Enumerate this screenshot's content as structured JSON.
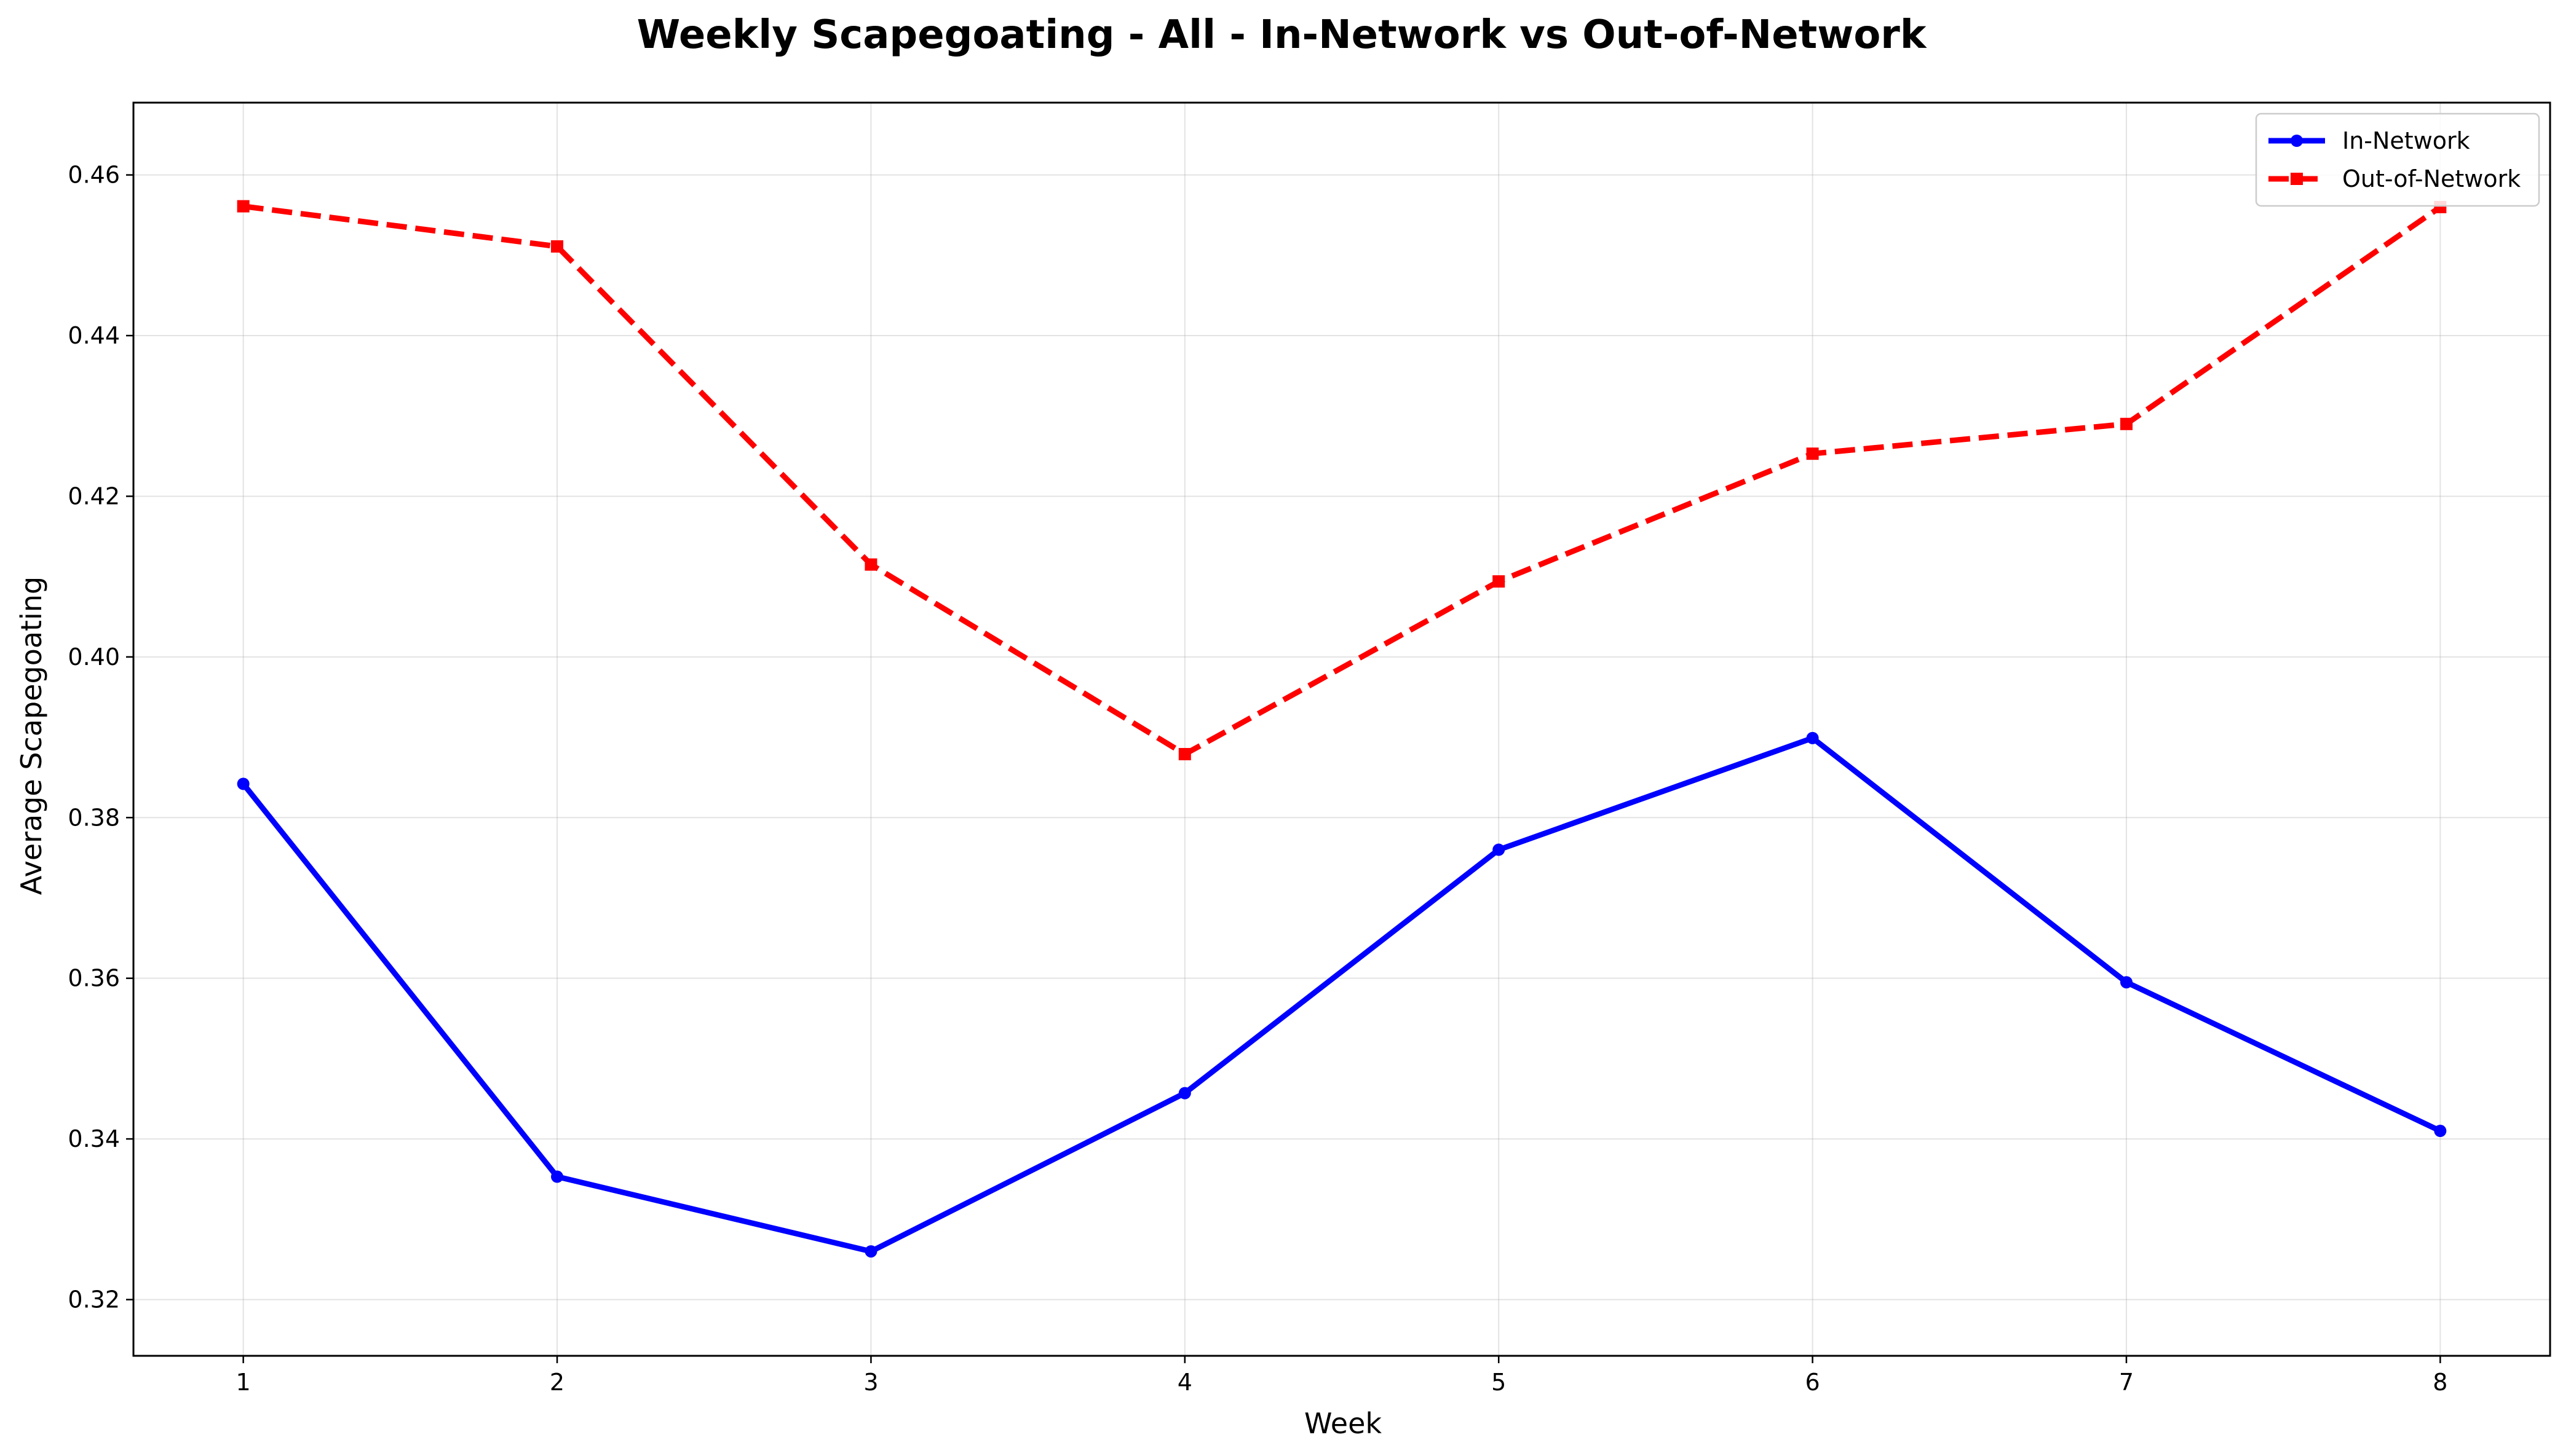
{
  "chart_data": {
    "type": "line",
    "title": "Weekly Scapegoating - All - In-Network vs Out-of-Network",
    "xlabel": "Week",
    "ylabel": "Average Scapegoating",
    "x": [
      1,
      2,
      3,
      4,
      5,
      6,
      7,
      8
    ],
    "xlim": [
      0.65,
      8.35
    ],
    "ylim": [
      0.313,
      0.469
    ],
    "xticks": [
      1,
      2,
      3,
      4,
      5,
      6,
      7,
      8
    ],
    "yticks": [
      0.32,
      0.34,
      0.36,
      0.38,
      0.4,
      0.42,
      0.44,
      0.46
    ],
    "ytick_labels": [
      "0.32",
      "0.34",
      "0.36",
      "0.38",
      "0.40",
      "0.42",
      "0.44",
      "0.46"
    ],
    "grid": true,
    "legend_position": "top-right",
    "series": [
      {
        "name": "In-Network",
        "color": "#0000ff",
        "line_style": "solid",
        "marker": "circle",
        "values": [
          0.3842,
          0.3353,
          0.326,
          0.3457,
          0.376,
          0.3899,
          0.3595,
          0.341
        ]
      },
      {
        "name": "Out-of-Network",
        "color": "#ff0000",
        "line_style": "dashed",
        "marker": "square",
        "values": [
          0.4561,
          0.4511,
          0.4115,
          0.3879,
          0.4094,
          0.4253,
          0.429,
          0.456
        ]
      }
    ]
  }
}
